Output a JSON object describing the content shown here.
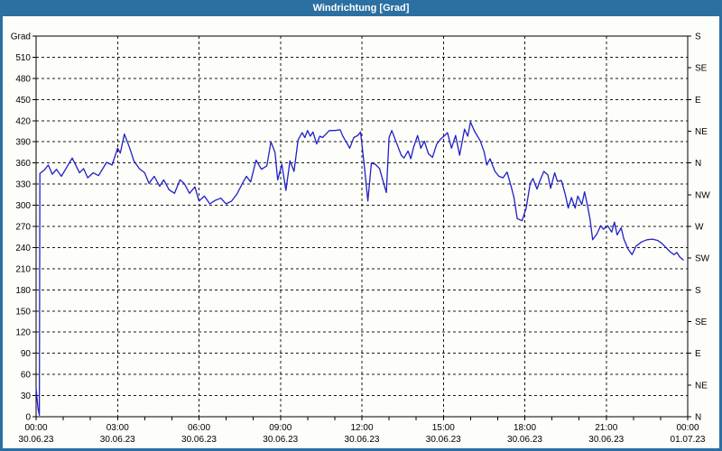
{
  "window": {
    "title": "Windrichtung [Grad]"
  },
  "colors": {
    "titlebar": "#2c6fa1",
    "window_border": "#2c6fa1",
    "title_text": "#ffffff",
    "background": "#fdfdfa",
    "plot_border": "#000000",
    "gridline": "#1a1a1a",
    "series_line": "#2020c8"
  },
  "chart_data": {
    "type": "line",
    "title": "Windrichtung [Grad]",
    "grid": "dashed",
    "ylim": [
      0,
      540
    ],
    "xlim_hours": [
      0,
      24
    ],
    "y_axis_left": {
      "unit_label": "Grad",
      "step": 30,
      "tick_labels": [
        "510",
        "480",
        "450",
        "420",
        "390",
        "360",
        "330",
        "300",
        "270",
        "240",
        "210",
        "180",
        "150",
        "120",
        "90",
        "60",
        "30",
        "0"
      ]
    },
    "y_axis_right": {
      "tick_labels": [
        "S",
        "SE",
        "E",
        "NE",
        "N",
        "NW",
        "W",
        "SW",
        "S",
        "SE",
        "E",
        "NE",
        "N"
      ],
      "degrees": [
        540,
        495,
        450,
        405,
        360,
        315,
        270,
        225,
        180,
        135,
        90,
        45,
        0
      ]
    },
    "x_axis": {
      "hours": [
        0,
        3,
        6,
        9,
        12,
        15,
        18,
        21,
        24
      ],
      "tick_times": [
        "00:00",
        "03:00",
        "06:00",
        "09:00",
        "12:00",
        "15:00",
        "18:00",
        "21:00",
        "00:00"
      ],
      "tick_dates": [
        "30.06.23",
        "30.06.23",
        "30.06.23",
        "30.06.23",
        "30.06.23",
        "30.06.23",
        "30.06.23",
        "30.06.23",
        "01.07.23"
      ],
      "minor_tick_every_hours": 1
    },
    "series": [
      {
        "name": "Windrichtung",
        "color": "#2020c8",
        "points_h_deg": [
          [
            0,
            40
          ],
          [
            0.07,
            12
          ],
          [
            0.12,
            2
          ],
          [
            0.14,
            345
          ],
          [
            0.3,
            350
          ],
          [
            0.45,
            357
          ],
          [
            0.6,
            344
          ],
          [
            0.75,
            351
          ],
          [
            0.93,
            341
          ],
          [
            1.1,
            352
          ],
          [
            1.33,
            367
          ],
          [
            1.6,
            346
          ],
          [
            1.75,
            352
          ],
          [
            1.9,
            339
          ],
          [
            2.1,
            346
          ],
          [
            2.3,
            342
          ],
          [
            2.6,
            361
          ],
          [
            2.8,
            357
          ],
          [
            3,
            381
          ],
          [
            3.1,
            374
          ],
          [
            3.25,
            401
          ],
          [
            3.45,
            381
          ],
          [
            3.6,
            363
          ],
          [
            3.8,
            352
          ],
          [
            4,
            346
          ],
          [
            4.16,
            331
          ],
          [
            4.35,
            341
          ],
          [
            4.55,
            327
          ],
          [
            4.7,
            336
          ],
          [
            4.9,
            322
          ],
          [
            5.1,
            317
          ],
          [
            5.3,
            336
          ],
          [
            5.45,
            331
          ],
          [
            5.65,
            317
          ],
          [
            5.85,
            326
          ],
          [
            6,
            306
          ],
          [
            6.2,
            313
          ],
          [
            6.4,
            302
          ],
          [
            6.6,
            307
          ],
          [
            6.8,
            310
          ],
          [
            7,
            302
          ],
          [
            7.2,
            306
          ],
          [
            7.4,
            316
          ],
          [
            7.6,
            331
          ],
          [
            7.75,
            341
          ],
          [
            7.9,
            333
          ],
          [
            8.1,
            364
          ],
          [
            8.3,
            351
          ],
          [
            8.5,
            356
          ],
          [
            8.65,
            390
          ],
          [
            8.8,
            375
          ],
          [
            8.9,
            336
          ],
          [
            9.05,
            358
          ],
          [
            9.2,
            321
          ],
          [
            9.35,
            363
          ],
          [
            9.5,
            348
          ],
          [
            9.65,
            393
          ],
          [
            9.8,
            403
          ],
          [
            9.9,
            396
          ],
          [
            10,
            406
          ],
          [
            10.1,
            398
          ],
          [
            10.2,
            404
          ],
          [
            10.33,
            387
          ],
          [
            10.45,
            398
          ],
          [
            10.55,
            396
          ],
          [
            10.65,
            400
          ],
          [
            10.8,
            406
          ],
          [
            11,
            406
          ],
          [
            11.2,
            407
          ],
          [
            11.3,
            398
          ],
          [
            11.45,
            388
          ],
          [
            11.55,
            381
          ],
          [
            11.7,
            396
          ],
          [
            11.85,
            399
          ],
          [
            11.95,
            404
          ],
          [
            12.1,
            352
          ],
          [
            12.22,
            306
          ],
          [
            12.35,
            360
          ],
          [
            12.5,
            358
          ],
          [
            12.65,
            352
          ],
          [
            12.8,
            331
          ],
          [
            12.9,
            318
          ],
          [
            13,
            396
          ],
          [
            13.1,
            406
          ],
          [
            13.3,
            386
          ],
          [
            13.45,
            371
          ],
          [
            13.55,
            367
          ],
          [
            13.7,
            377
          ],
          [
            13.8,
            366
          ],
          [
            13.9,
            382
          ],
          [
            14.05,
            399
          ],
          [
            14.17,
            381
          ],
          [
            14.3,
            391
          ],
          [
            14.45,
            373
          ],
          [
            14.6,
            368
          ],
          [
            14.75,
            386
          ],
          [
            14.9,
            394
          ],
          [
            15.05,
            399
          ],
          [
            15.15,
            403
          ],
          [
            15.3,
            381
          ],
          [
            15.45,
            399
          ],
          [
            15.6,
            371
          ],
          [
            15.78,
            408
          ],
          [
            15.9,
            398
          ],
          [
            16,
            418
          ],
          [
            16.15,
            405
          ],
          [
            16.35,
            392
          ],
          [
            16.5,
            376
          ],
          [
            16.6,
            357
          ],
          [
            16.72,
            366
          ],
          [
            16.9,
            348
          ],
          [
            17.05,
            341
          ],
          [
            17.2,
            339
          ],
          [
            17.35,
            347
          ],
          [
            17.5,
            326
          ],
          [
            17.6,
            311
          ],
          [
            17.72,
            281
          ],
          [
            17.9,
            278
          ],
          [
            18.05,
            296
          ],
          [
            18.2,
            331
          ],
          [
            18.3,
            338
          ],
          [
            18.45,
            323
          ],
          [
            18.55,
            334
          ],
          [
            18.7,
            348
          ],
          [
            18.85,
            343
          ],
          [
            18.95,
            324
          ],
          [
            19.1,
            346
          ],
          [
            19.2,
            334
          ],
          [
            19.35,
            335
          ],
          [
            19.5,
            314
          ],
          [
            19.6,
            296
          ],
          [
            19.72,
            311
          ],
          [
            19.85,
            296
          ],
          [
            19.95,
            313
          ],
          [
            20.1,
            301
          ],
          [
            20.2,
            319
          ],
          [
            20.3,
            301
          ],
          [
            20.4,
            281
          ],
          [
            20.5,
            251
          ],
          [
            20.65,
            259
          ],
          [
            20.8,
            271
          ],
          [
            20.9,
            266
          ],
          [
            21.05,
            271
          ],
          [
            21.2,
            262
          ],
          [
            21.3,
            276
          ],
          [
            21.4,
            258
          ],
          [
            21.55,
            268
          ],
          [
            21.65,
            252
          ],
          [
            21.8,
            238
          ],
          [
            21.95,
            230
          ],
          [
            22.1,
            242
          ],
          [
            22.3,
            248
          ],
          [
            22.5,
            251
          ],
          [
            22.7,
            252
          ],
          [
            22.9,
            250
          ],
          [
            23.05,
            246
          ],
          [
            23.2,
            240
          ],
          [
            23.35,
            234
          ],
          [
            23.5,
            230
          ],
          [
            23.6,
            233
          ],
          [
            23.7,
            227
          ],
          [
            23.85,
            222
          ]
        ]
      }
    ]
  }
}
